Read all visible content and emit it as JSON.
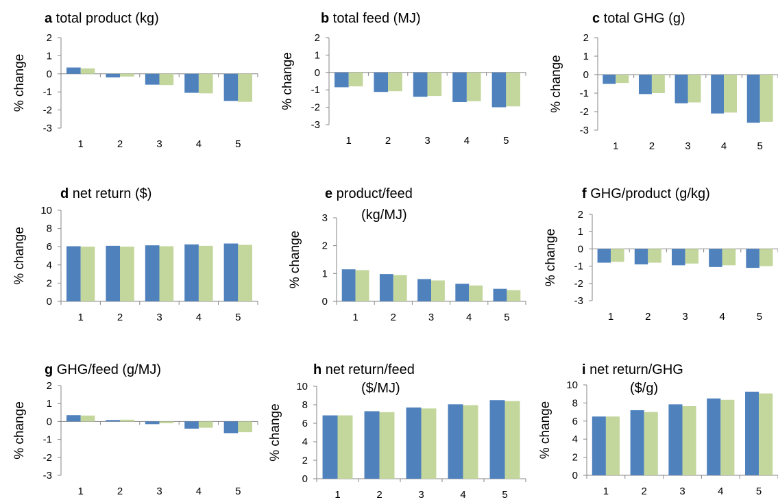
{
  "colors": {
    "series_a": "#4f81bd",
    "series_b": "#c3d69b",
    "axis": "#868686"
  },
  "chart_data": [
    {
      "type": "bar",
      "panel": "a",
      "title_rest": " total product (kg)",
      "ylabel": "% change",
      "categories": [
        "1",
        "2",
        "3",
        "4",
        "5"
      ],
      "ylim": [
        -3,
        2
      ],
      "yticks": [
        2,
        1,
        0,
        -1,
        -2,
        -3
      ],
      "series": [
        {
          "values": [
            0.35,
            -0.2,
            -0.6,
            -1.05,
            -1.5
          ]
        },
        {
          "values": [
            0.3,
            -0.15,
            -0.62,
            -1.08,
            -1.55
          ]
        }
      ]
    },
    {
      "type": "bar",
      "panel": "b",
      "title_rest": " total feed (MJ)",
      "ylabel": "% change",
      "categories": [
        "1",
        "2",
        "3",
        "4",
        "5"
      ],
      "ylim": [
        -3,
        2
      ],
      "yticks": [
        2,
        1,
        0,
        -1,
        -2,
        -3
      ],
      "series": [
        {
          "values": [
            -0.85,
            -1.12,
            -1.4,
            -1.7,
            -2.0
          ]
        },
        {
          "values": [
            -0.8,
            -1.08,
            -1.35,
            -1.65,
            -1.95
          ]
        }
      ]
    },
    {
      "type": "bar",
      "panel": "c",
      "title_rest": " total GHG (g)",
      "ylabel": "% change",
      "categories": [
        "1",
        "2",
        "3",
        "4",
        "5"
      ],
      "ylim": [
        -3,
        2
      ],
      "yticks": [
        2,
        1,
        0,
        -1,
        -2,
        -3
      ],
      "series": [
        {
          "values": [
            -0.5,
            -1.05,
            -1.55,
            -2.1,
            -2.6
          ]
        },
        {
          "values": [
            -0.45,
            -1.0,
            -1.5,
            -2.05,
            -2.55
          ]
        }
      ]
    },
    {
      "type": "bar",
      "panel": "d",
      "title_rest": " net return ($)",
      "ylabel": "% change",
      "categories": [
        "1",
        "2",
        "3",
        "4",
        "5"
      ],
      "ylim": [
        0,
        10
      ],
      "yticks": [
        10,
        8,
        6,
        4,
        2,
        0
      ],
      "series": [
        {
          "values": [
            6.05,
            6.1,
            6.15,
            6.25,
            6.35
          ]
        },
        {
          "values": [
            6.0,
            6.0,
            6.05,
            6.1,
            6.2
          ]
        }
      ]
    },
    {
      "type": "bar",
      "panel": "e",
      "title_rest": " product/feed",
      "title_line2": "(kg/MJ)",
      "ylabel": "% change",
      "categories": [
        "1",
        "2",
        "3",
        "4",
        "5"
      ],
      "ylim": [
        0,
        3
      ],
      "yticks": [
        3,
        2,
        1,
        0
      ],
      "series": [
        {
          "values": [
            1.15,
            0.98,
            0.8,
            0.63,
            0.45
          ]
        },
        {
          "values": [
            1.12,
            0.94,
            0.75,
            0.57,
            0.4
          ]
        }
      ]
    },
    {
      "type": "bar",
      "panel": "f",
      "title_rest": " GHG/product (g/kg)",
      "ylabel": "% change",
      "categories": [
        "1",
        "2",
        "3",
        "4",
        "5"
      ],
      "ylim": [
        -3,
        2
      ],
      "yticks": [
        2,
        1,
        0,
        -1,
        -2,
        -3
      ],
      "series": [
        {
          "values": [
            -0.8,
            -0.9,
            -0.95,
            -1.05,
            -1.1
          ]
        },
        {
          "values": [
            -0.75,
            -0.8,
            -0.85,
            -0.95,
            -1.0
          ]
        }
      ]
    },
    {
      "type": "bar",
      "panel": "g",
      "title_rest": " GHG/feed (g/MJ)",
      "ylabel": "% change",
      "categories": [
        "1",
        "2",
        "3",
        "4",
        "5"
      ],
      "ylim": [
        -3,
        2
      ],
      "yticks": [
        2,
        1,
        0,
        -1,
        -2,
        -3
      ],
      "series": [
        {
          "values": [
            0.35,
            0.08,
            -0.15,
            -0.4,
            -0.65
          ]
        },
        {
          "values": [
            0.33,
            0.1,
            -0.1,
            -0.35,
            -0.6
          ]
        }
      ]
    },
    {
      "type": "bar",
      "panel": "h",
      "title_rest": " net return/feed",
      "title_line2": "($/MJ)",
      "ylabel": "% change",
      "categories": [
        "1",
        "2",
        "3",
        "4",
        "5"
      ],
      "ylim": [
        0,
        10
      ],
      "yticks": [
        10,
        8,
        6,
        4,
        2,
        0
      ],
      "series": [
        {
          "values": [
            6.85,
            7.3,
            7.7,
            8.05,
            8.5
          ]
        },
        {
          "values": [
            6.85,
            7.2,
            7.6,
            7.95,
            8.4
          ]
        }
      ]
    },
    {
      "type": "bar",
      "panel": "i",
      "title_rest": " net return/GHG",
      "title_line2": "($/g)",
      "ylabel": "% change",
      "categories": [
        "1",
        "2",
        "3",
        "4",
        "5"
      ],
      "ylim": [
        0,
        10
      ],
      "yticks": [
        10,
        8,
        6,
        4,
        2,
        0
      ],
      "series": [
        {
          "values": [
            6.5,
            7.2,
            7.85,
            8.5,
            9.25
          ]
        },
        {
          "values": [
            6.5,
            7.0,
            7.65,
            8.35,
            9.05
          ]
        }
      ]
    }
  ]
}
